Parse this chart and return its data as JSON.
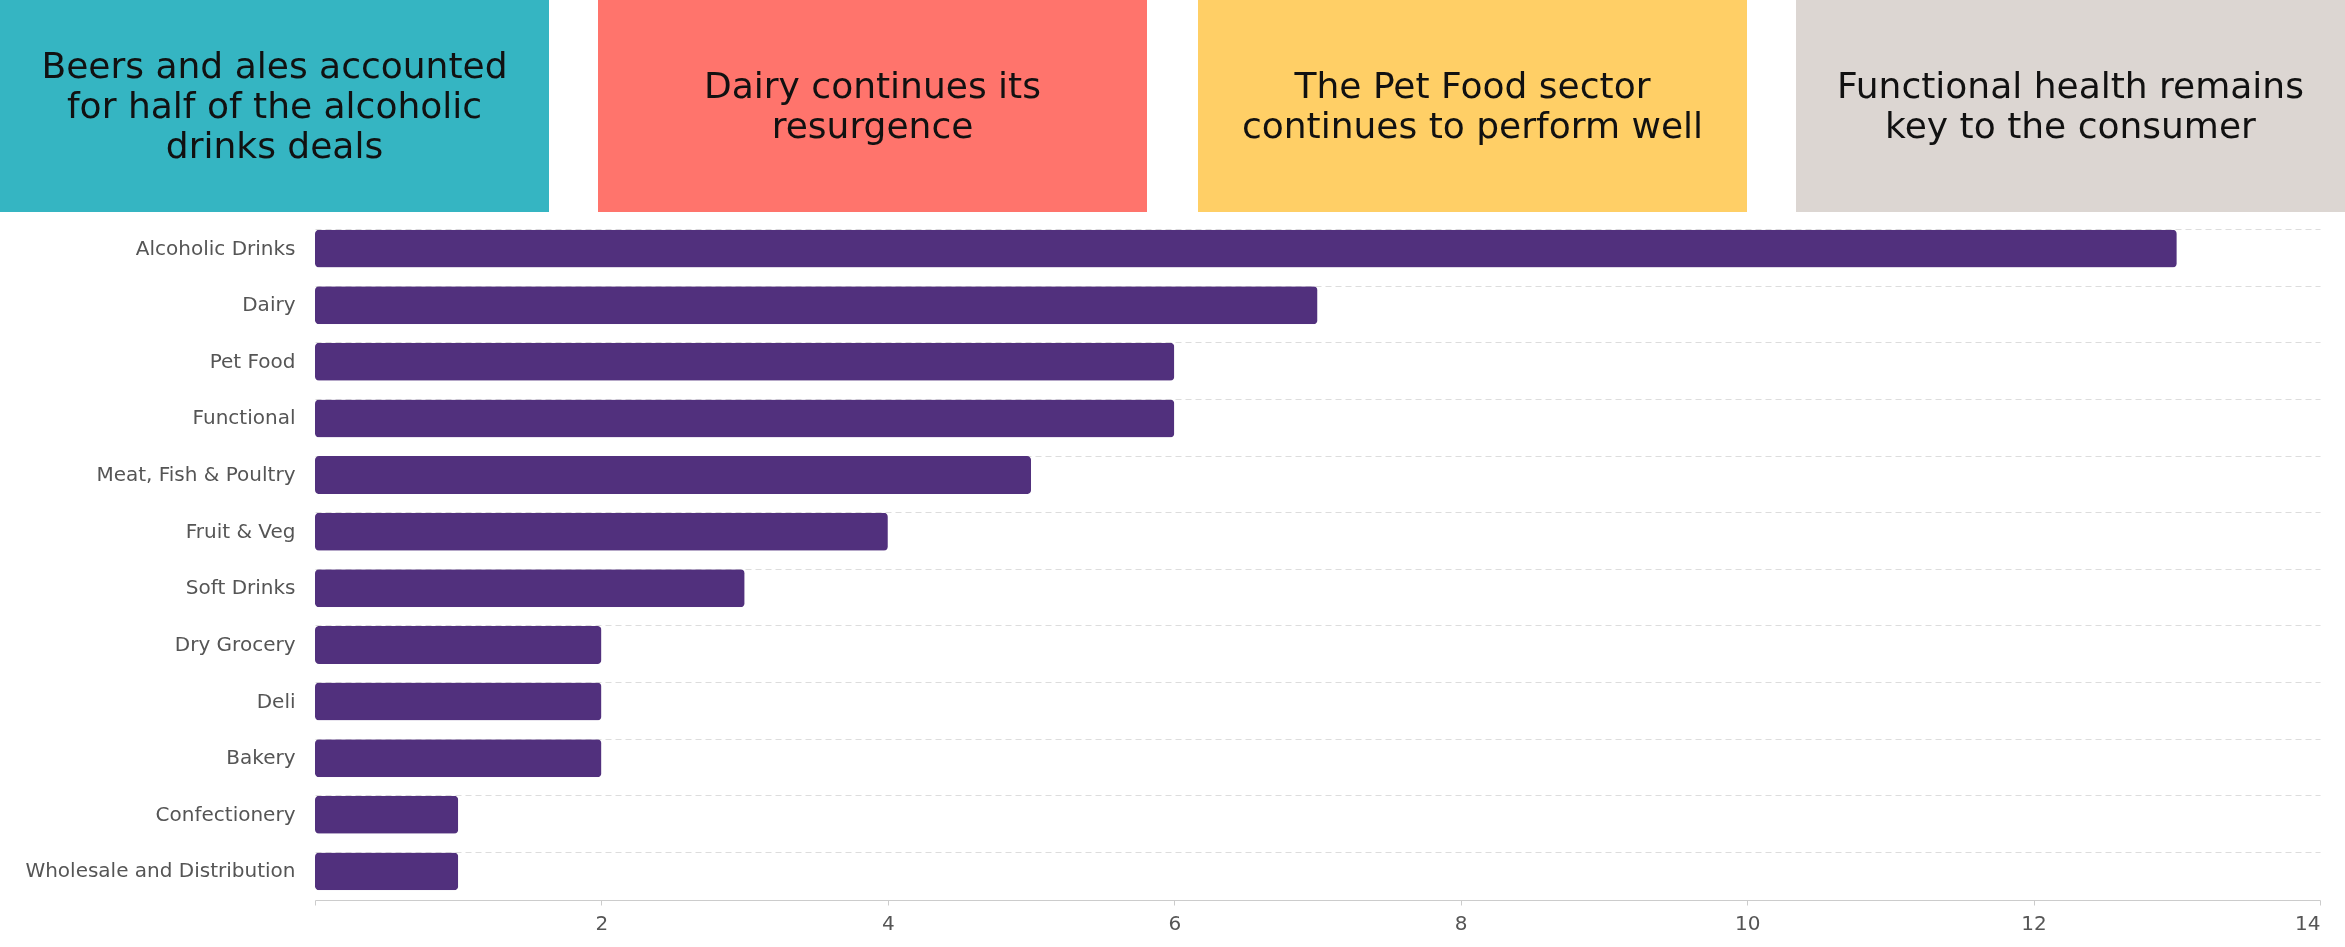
{
  "chart_data": {
    "type": "bar",
    "orientation": "horizontal",
    "annotations": [
      "Beers and ales accounted for half of the alcoholic drinks deals",
      "Dairy continues its resurgence",
      "The Pet Food sector continues to perform well",
      "Functional health remains key to the consumer"
    ],
    "categories": [
      "Alcoholic Drinks",
      "Dairy",
      "Pet Food",
      "Functional",
      "Meat, Fish & Poultry",
      "Fruit & Veg",
      "Soft Drinks",
      "Dry Grocery",
      "Deli",
      "Bakery",
      "Confectionery",
      "Wholesale and Distribution"
    ],
    "values": [
      13,
      7,
      6,
      6,
      5,
      4,
      3,
      2,
      2,
      2,
      1,
      1
    ],
    "color": "#51307d",
    "xlim": [
      0,
      14
    ],
    "xticks": [
      {
        "value": 0,
        "label": null
      },
      2,
      4,
      6,
      8,
      10,
      12,
      14
    ],
    "grid": "y"
  }
}
